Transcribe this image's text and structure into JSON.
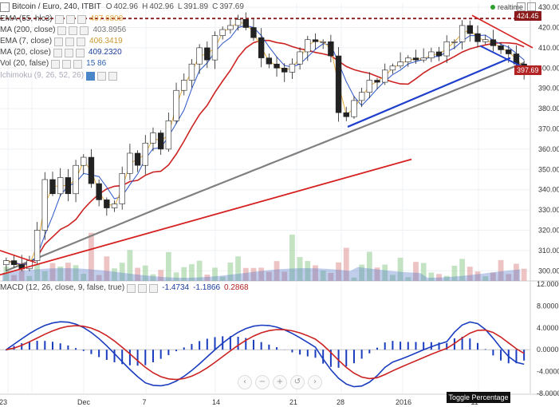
{
  "header": {
    "symbol": "Bitcoin / Euro, 240, ITBIT",
    "o_label": "O",
    "o_value": "402.96",
    "h_label": "H",
    "h_value": "402.96",
    "l_label": "L",
    "l_value": "391.89",
    "c_label": "C",
    "c_value": "397.69",
    "realtime": "realtime"
  },
  "indicators": [
    {
      "name": "EMA (55, hlc3)",
      "value": "407.6808",
      "color": "#e8a640"
    },
    {
      "name": "MA (200, close)",
      "value": "403.8956",
      "color": "#777777"
    },
    {
      "name": "EMA (7, close)",
      "value": "406.3419",
      "color": "#c99a2e"
    },
    {
      "name": "MA (20, close)",
      "value": "409.2320",
      "color": "#1a3d9c"
    },
    {
      "name": "Vol (20, false)",
      "value": "15 86",
      "color": "#2a5fb0"
    },
    {
      "name": "Ichimoku (9, 26, 52, 26)",
      "value": "",
      "color": "#bbbbbb"
    }
  ],
  "macd": {
    "name": "MACD (12, 26, close, 9, false, true)",
    "v1": "-1.4734",
    "v2": "-1.1866",
    "v3": "0.2868"
  },
  "price_axis": [
    "430.00",
    "420.00",
    "410.00",
    "400.00",
    "390.00",
    "380.00",
    "370.00",
    "360.00",
    "350.00",
    "340.00",
    "330.00",
    "320.00",
    "310.00",
    "300.00"
  ],
  "price_markers": {
    "resistance": "424.45",
    "last": "397.69"
  },
  "macd_axis": [
    "12.0000",
    "8.0000",
    "4.0000",
    "0.0000",
    "-4.0000",
    "-8.0000"
  ],
  "time_axis": [
    "23",
    "Dec",
    "7",
    "14",
    "21",
    "28",
    "2016",
    "11"
  ],
  "buttons": {
    "toggle": "Toggle Percentage"
  },
  "nav": {
    "left": "‹",
    "minus": "−",
    "plus": "+",
    "reset": "↺",
    "right": "›"
  },
  "chart_data": {
    "type": "candlestick",
    "title": "Bitcoin / Euro, 240, ITBIT",
    "ylim": [
      295,
      432
    ],
    "resistance": 424.45,
    "last_price": 397.69,
    "macd_ylim": [
      -8,
      12
    ],
    "colors": {
      "up": "#2e8b57",
      "down": "#b22222",
      "ma200": "#808080",
      "ema55": "#cc2222",
      "ma20": "#2a55c7",
      "trend": "#1f3fcc",
      "support_red": "#d62020",
      "vol_area": "#4a72c8"
    },
    "close_path": [
      305,
      303,
      301,
      305,
      320,
      345,
      338,
      346,
      338,
      352,
      356,
      343,
      335,
      331,
      333,
      348,
      358,
      352,
      363,
      368,
      360,
      374,
      389,
      394,
      402,
      410,
      404,
      416,
      419,
      421,
      424,
      420,
      415,
      405,
      402,
      400,
      398,
      402,
      408,
      414,
      413,
      413,
      406,
      378,
      376,
      384,
      388,
      394,
      393,
      399,
      401,
      403,
      405,
      404,
      405,
      408,
      406,
      413,
      413,
      421,
      417,
      413,
      414,
      411,
      409,
      407,
      402,
      398
    ]
  }
}
